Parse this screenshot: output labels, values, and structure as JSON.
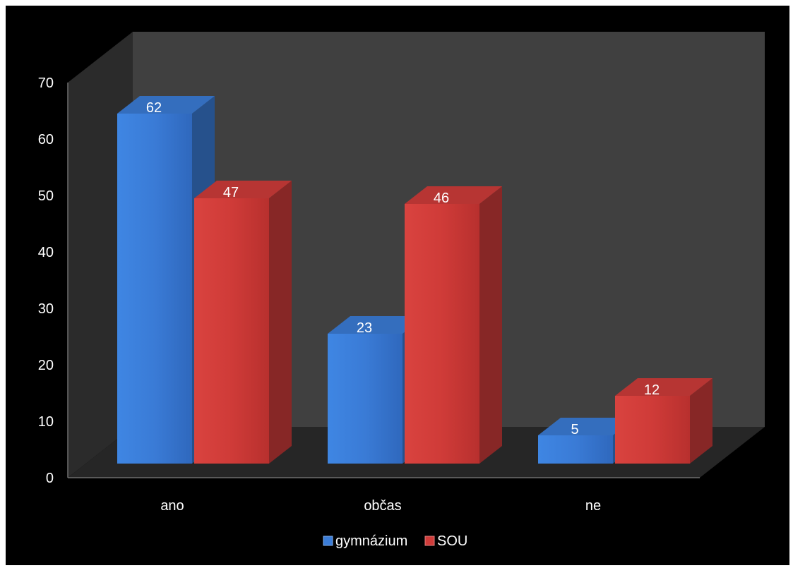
{
  "chart_data": {
    "type": "bar",
    "title": "",
    "xlabel": "",
    "ylabel": "",
    "categories": [
      "ano",
      "občas",
      "ne"
    ],
    "series": [
      {
        "name": "gymnázium",
        "values": [
          62,
          23,
          5
        ],
        "color": "#3b7dd8"
      },
      {
        "name": "SOU",
        "values": [
          47,
          46,
          12
        ],
        "color": "#d03c3a"
      }
    ],
    "ylim": [
      0,
      70
    ],
    "yticks": [
      "0",
      "10",
      "20",
      "30",
      "40",
      "50",
      "60",
      "70"
    ],
    "data_labels": true,
    "legend_position": "bottom",
    "grid": false
  }
}
